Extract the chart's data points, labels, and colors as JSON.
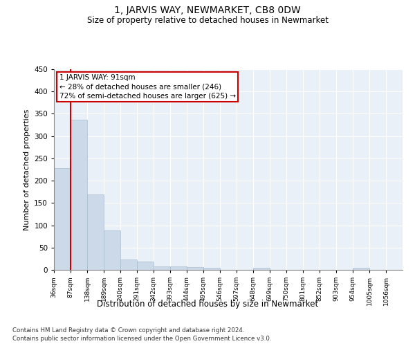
{
  "title": "1, JARVIS WAY, NEWMARKET, CB8 0DW",
  "subtitle": "Size of property relative to detached houses in Newmarket",
  "xlabel": "Distribution of detached houses by size in Newmarket",
  "ylabel": "Number of detached properties",
  "bar_color": "#ccd9e8",
  "bar_edge_color": "#a8bdd0",
  "background_color": "#eaf0f7",
  "grid_color": "#ffffff",
  "annotation_line_color": "#cc0000",
  "annotation_box_color": "#cc0000",
  "annotation_line1": "1 JARVIS WAY: 91sqm",
  "annotation_line2": "← 28% of detached houses are smaller (246)",
  "annotation_line3": "72% of semi-detached houses are larger (625) →",
  "bins": [
    36,
    87,
    138,
    189,
    240,
    291,
    342,
    393,
    444,
    495,
    546,
    597,
    648,
    699,
    750,
    801,
    852,
    903,
    954,
    1005,
    1056
  ],
  "bin_labels": [
    "36sqm",
    "87sqm",
    "138sqm",
    "189sqm",
    "240sqm",
    "291sqm",
    "342sqm",
    "393sqm",
    "444sqm",
    "495sqm",
    "546sqm",
    "597sqm",
    "648sqm",
    "699sqm",
    "750sqm",
    "801sqm",
    "852sqm",
    "903sqm",
    "954sqm",
    "1005sqm",
    "1056sqm"
  ],
  "counts": [
    228,
    337,
    169,
    88,
    24,
    18,
    7,
    8,
    6,
    4,
    0,
    0,
    5,
    0,
    0,
    0,
    0,
    0,
    4,
    0,
    0
  ],
  "ylim": [
    0,
    450
  ],
  "yticks": [
    0,
    50,
    100,
    150,
    200,
    250,
    300,
    350,
    400,
    450
  ],
  "footer1": "Contains HM Land Registry data © Crown copyright and database right 2024.",
  "footer2": "Contains public sector information licensed under the Open Government Licence v3.0."
}
